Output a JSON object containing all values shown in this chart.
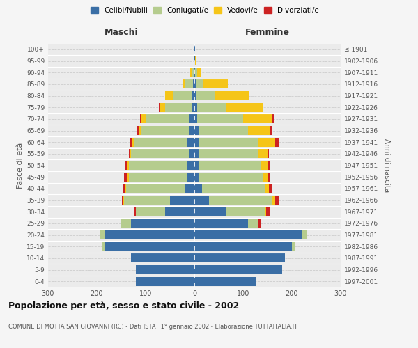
{
  "age_groups": [
    "0-4",
    "5-9",
    "10-14",
    "15-19",
    "20-24",
    "25-29",
    "30-34",
    "35-39",
    "40-44",
    "45-49",
    "50-54",
    "55-59",
    "60-64",
    "65-69",
    "70-74",
    "75-79",
    "80-84",
    "85-89",
    "90-94",
    "95-99",
    "100+"
  ],
  "birth_years": [
    "1997-2001",
    "1992-1996",
    "1987-1991",
    "1982-1986",
    "1977-1981",
    "1972-1976",
    "1967-1971",
    "1962-1966",
    "1957-1961",
    "1952-1956",
    "1947-1951",
    "1942-1946",
    "1937-1941",
    "1932-1936",
    "1927-1931",
    "1922-1926",
    "1917-1921",
    "1912-1916",
    "1907-1911",
    "1902-1906",
    "≤ 1901"
  ],
  "maschi": {
    "celibi": [
      120,
      120,
      130,
      185,
      185,
      130,
      60,
      50,
      20,
      15,
      15,
      10,
      15,
      10,
      10,
      5,
      5,
      3,
      2,
      1,
      1
    ],
    "coniugati": [
      0,
      0,
      0,
      3,
      8,
      20,
      60,
      95,
      120,
      120,
      120,
      120,
      110,
      100,
      90,
      55,
      40,
      15,
      4,
      0,
      0
    ],
    "vedovi": [
      0,
      0,
      0,
      0,
      0,
      0,
      0,
      1,
      1,
      2,
      3,
      3,
      4,
      5,
      8,
      10,
      15,
      5,
      3,
      1,
      0
    ],
    "divorziati": [
      0,
      0,
      0,
      0,
      0,
      2,
      3,
      3,
      5,
      8,
      5,
      2,
      2,
      3,
      4,
      3,
      0,
      0,
      0,
      0,
      0
    ]
  },
  "femmine": {
    "nubili": [
      125,
      180,
      185,
      200,
      220,
      110,
      65,
      30,
      15,
      10,
      10,
      10,
      10,
      10,
      5,
      5,
      3,
      3,
      2,
      1,
      1
    ],
    "coniugate": [
      0,
      0,
      0,
      5,
      10,
      20,
      80,
      130,
      130,
      130,
      125,
      120,
      120,
      100,
      95,
      60,
      40,
      15,
      4,
      0,
      0
    ],
    "vedove": [
      0,
      0,
      0,
      0,
      1,
      2,
      2,
      5,
      8,
      10,
      15,
      20,
      35,
      45,
      60,
      75,
      70,
      50,
      8,
      2,
      1
    ],
    "divorziate": [
      0,
      0,
      0,
      0,
      0,
      3,
      8,
      8,
      5,
      5,
      5,
      3,
      8,
      5,
      3,
      0,
      0,
      0,
      0,
      0,
      0
    ]
  },
  "colors": {
    "celibi": "#3a6ea5",
    "coniugati": "#b5cc8e",
    "vedovi": "#f5c518",
    "divorziati": "#cc2222"
  },
  "xlim": 300,
  "title": "Popolazione per età, sesso e stato civile - 2002",
  "subtitle": "COMUNE DI MOTTA SAN GIOVANNI (RC) - Dati ISTAT 1° gennaio 2002 - Elaborazione TUTTAITALIA.IT",
  "ylabel_left": "Fasce di età",
  "ylabel_right": "Anni di nascita",
  "xlabel_left": "Maschi",
  "xlabel_right": "Femmine",
  "bg_color": "#f5f5f5",
  "plot_bg": "#ebebeb"
}
